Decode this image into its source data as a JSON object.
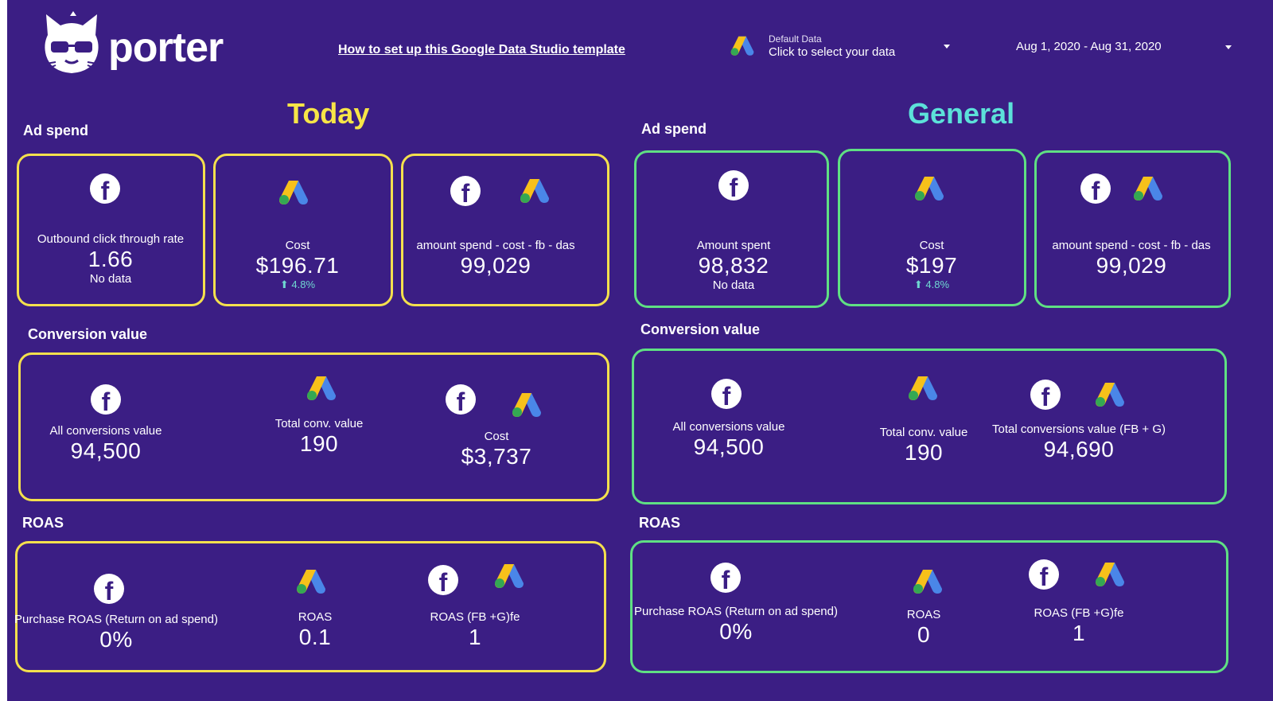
{
  "header": {
    "logo_text": "porter",
    "howto_link": "How to set up this Google Data Studio template",
    "data_source": {
      "label_top": "Default Data",
      "label_bottom": "Click to select your data",
      "icon": "google-ads-icon"
    },
    "date_range": "Aug 1, 2020 - Aug 31, 2020"
  },
  "colors": {
    "background": "#3b1e84",
    "today_accent": "#f4e04d",
    "general_accent": "#5fe083",
    "today_title": "#f7e547",
    "general_title": "#5ce1d9",
    "delta": "#6fd8d1"
  },
  "today": {
    "title": "Today",
    "ad_spend": {
      "label": "Ad spend",
      "cards": [
        {
          "icons": [
            "facebook-icon"
          ],
          "label": "Outbound click through rate",
          "value": "1.66",
          "sub": "No data"
        },
        {
          "icons": [
            "google-ads-icon"
          ],
          "label": "Cost",
          "value": "$196.71",
          "delta": "⬆ 4.8%"
        },
        {
          "icons": [
            "facebook-icon",
            "google-ads-icon"
          ],
          "label": "amount spend - cost - fb - das",
          "value": "99,029"
        }
      ]
    },
    "conversion": {
      "label": "Conversion value",
      "metrics": [
        {
          "icons": [
            "facebook-icon"
          ],
          "label": "All conversions value",
          "value": "94,500"
        },
        {
          "icons": [
            "google-ads-icon"
          ],
          "label": "Total conv. value",
          "value": "190"
        },
        {
          "icons": [
            "facebook-icon",
            "google-ads-icon"
          ],
          "label": "Cost",
          "value": "$3,737"
        }
      ]
    },
    "roas": {
      "label": "ROAS",
      "metrics": [
        {
          "icons": [
            "facebook-icon"
          ],
          "label": "Purchase ROAS (Return on ad spend)",
          "value": "0%"
        },
        {
          "icons": [
            "google-ads-icon"
          ],
          "label": "ROAS",
          "value": "0.1"
        },
        {
          "icons": [
            "facebook-icon",
            "google-ads-icon"
          ],
          "label": "ROAS (FB +G)fe",
          "value": "1"
        }
      ]
    }
  },
  "general": {
    "title": "General",
    "ad_spend": {
      "label": "Ad spend",
      "cards": [
        {
          "icons": [
            "facebook-icon"
          ],
          "label": "Amount spent",
          "value": "98,832",
          "sub": "No data"
        },
        {
          "icons": [
            "google-ads-icon"
          ],
          "label": "Cost",
          "value": "$197",
          "delta": "⬆ 4.8%"
        },
        {
          "icons": [
            "facebook-icon",
            "google-ads-icon"
          ],
          "label": "amount spend - cost - fb - das",
          "value": "99,029"
        }
      ]
    },
    "conversion": {
      "label": "Conversion value",
      "metrics": [
        {
          "icons": [
            "facebook-icon"
          ],
          "label": "All conversions value",
          "value": "94,500"
        },
        {
          "icons": [
            "google-ads-icon"
          ],
          "label": "Total conv. value",
          "value": "190"
        },
        {
          "icons": [
            "facebook-icon",
            "google-ads-icon"
          ],
          "label": "Total conversions value (FB + G)",
          "value": "94,690"
        }
      ]
    },
    "roas": {
      "label": "ROAS",
      "metrics": [
        {
          "icons": [
            "facebook-icon"
          ],
          "label": "Purchase ROAS (Return on ad spend)",
          "value": "0%"
        },
        {
          "icons": [
            "google-ads-icon"
          ],
          "label": "ROAS",
          "value": "0"
        },
        {
          "icons": [
            "facebook-icon",
            "google-ads-icon"
          ],
          "label": "ROAS (FB +G)fe",
          "value": "1"
        }
      ]
    }
  }
}
